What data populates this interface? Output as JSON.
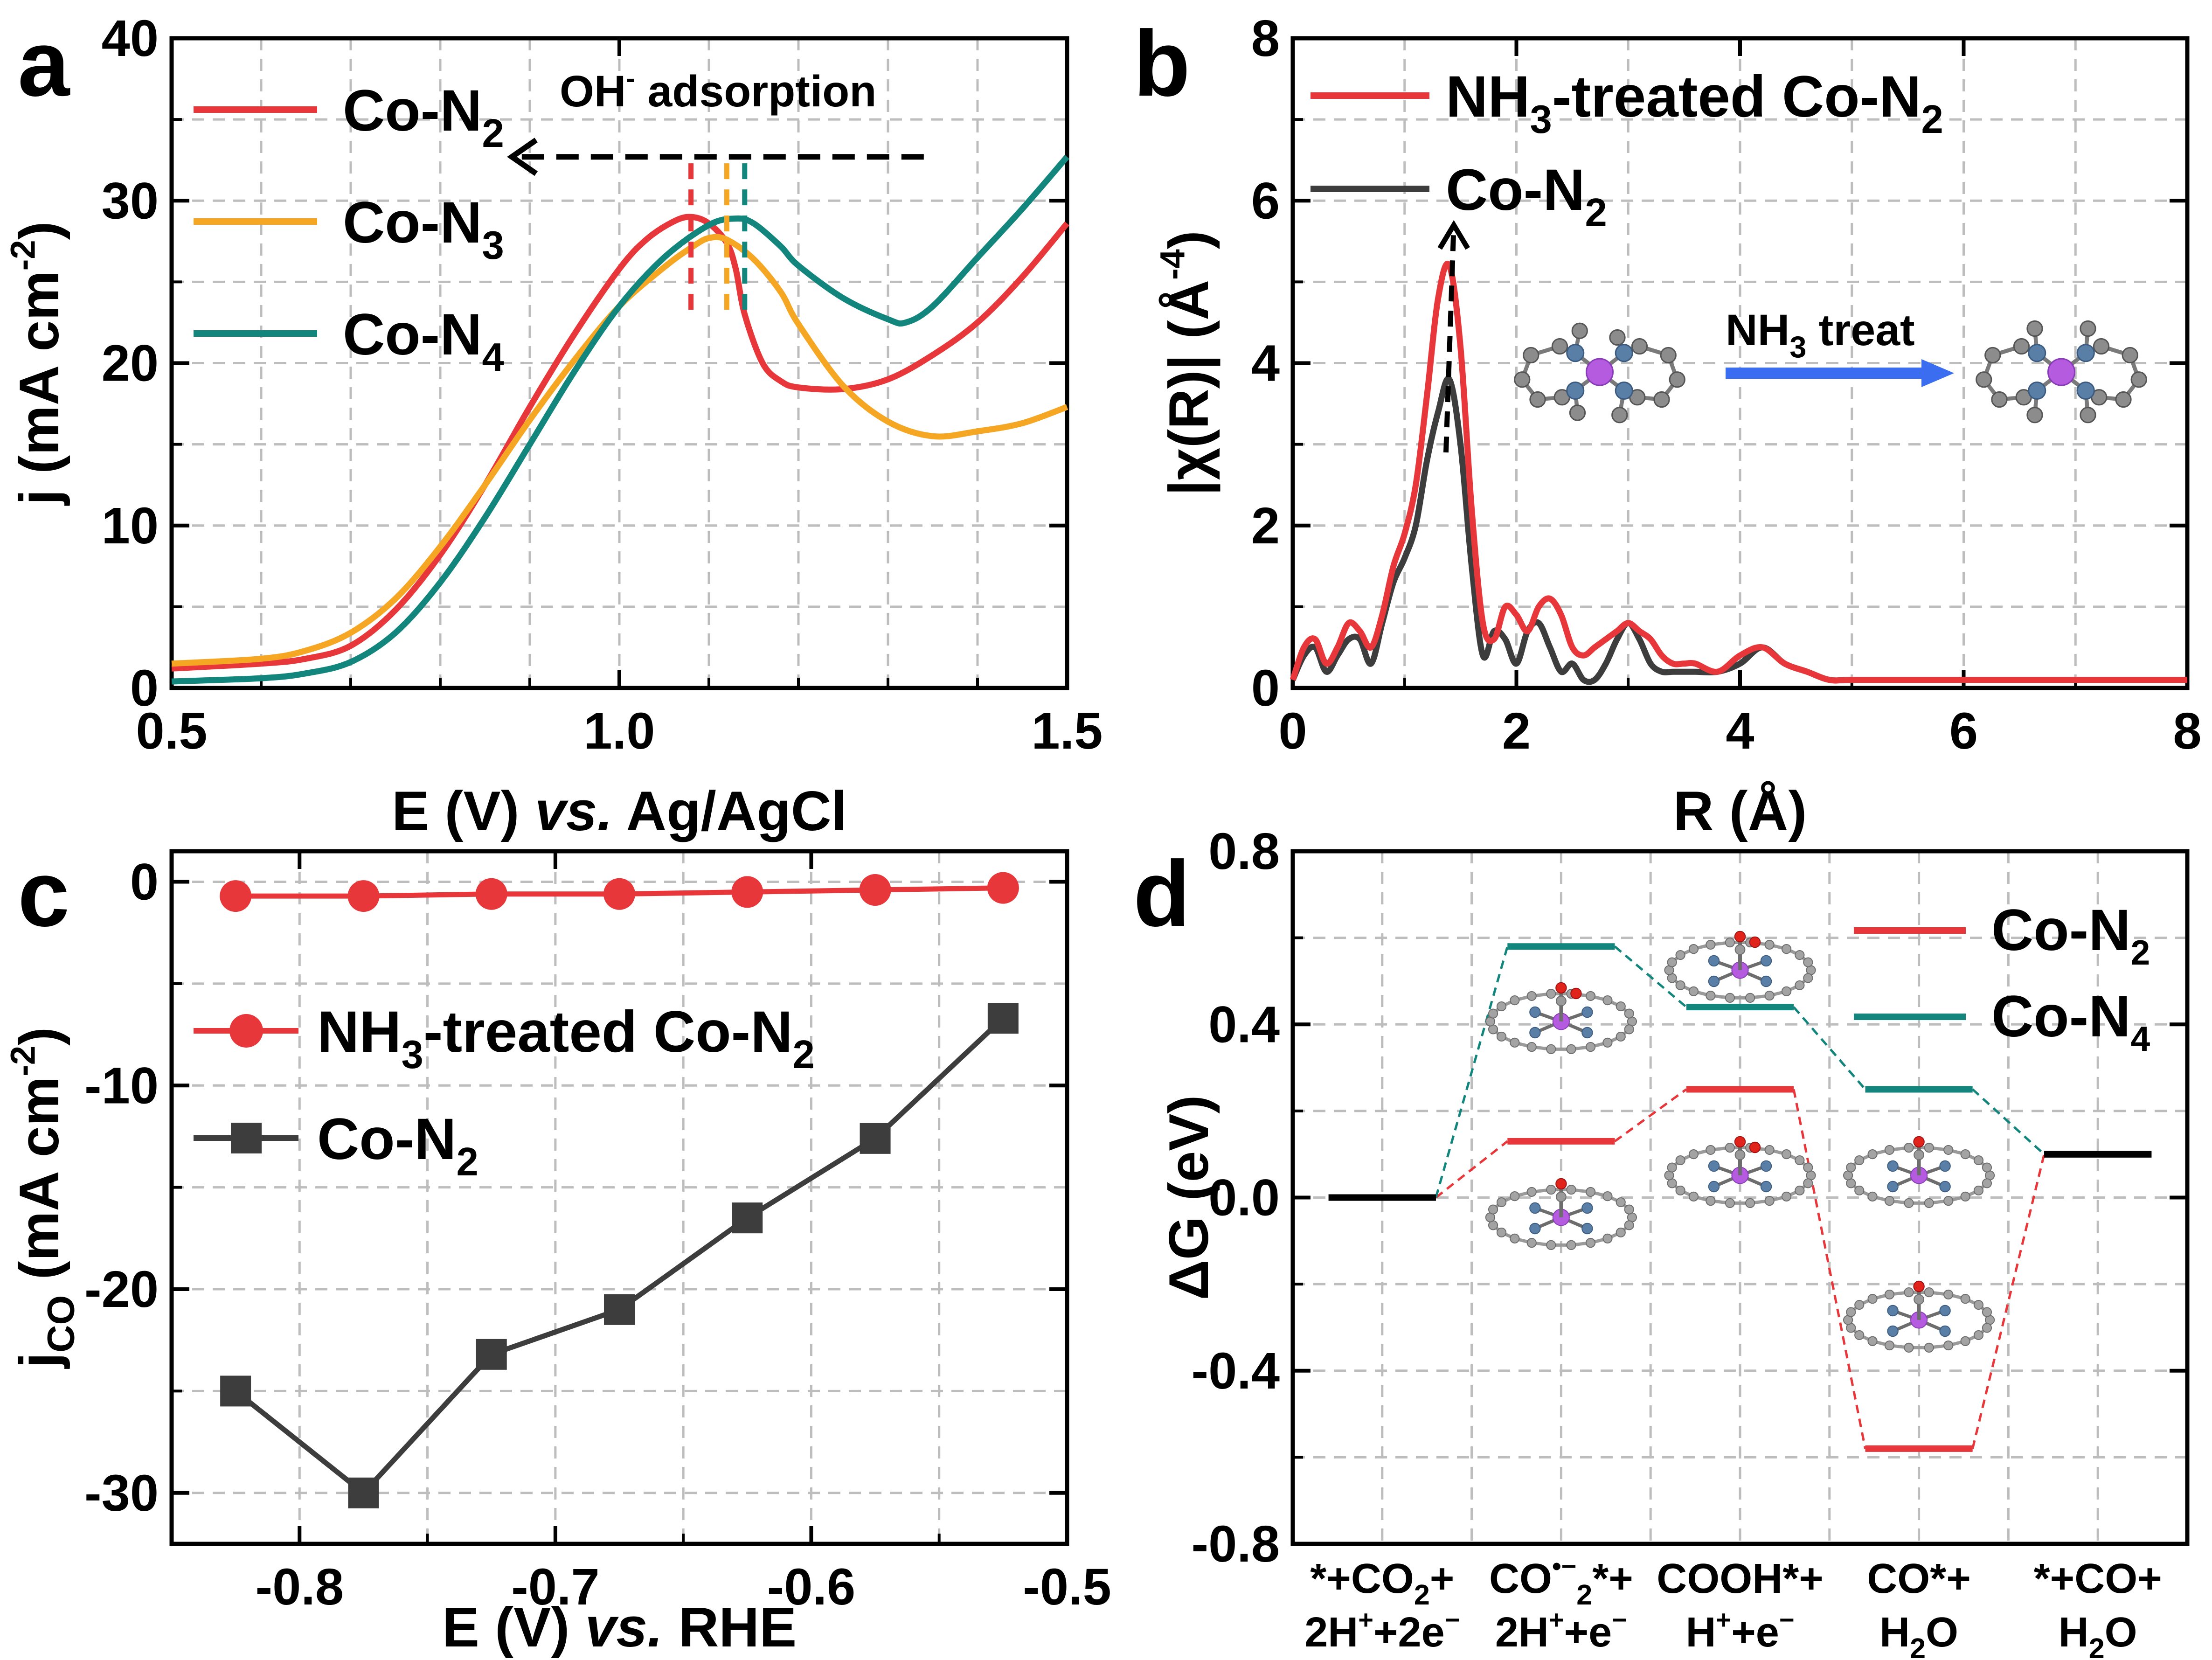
{
  "colors": {
    "red": "#e8373a",
    "orange": "#f5a623",
    "teal": "#12857d",
    "gray": "#3d3d3d",
    "blue": "#3a6df0",
    "black": "#000000"
  },
  "chart_data": [
    {
      "panel": "a",
      "type": "line",
      "xlabel_parts": [
        "E (V) ",
        "vs.",
        " Ag/AgCl"
      ],
      "ylabel": "j (mA cm-2)",
      "ylabel_parts": [
        "j (mA cm",
        "-2",
        ")"
      ],
      "xlim": [
        0.5,
        1.5
      ],
      "ylim": [
        0,
        40
      ],
      "xticks": [
        0.5,
        1.0,
        1.5
      ],
      "xtick_labels": [
        "0.5",
        "1.0",
        "1.5"
      ],
      "yticks": [
        0,
        10,
        20,
        30,
        40
      ],
      "ytick_labels": [
        "0",
        "10",
        "20",
        "30",
        "40"
      ],
      "grid": true,
      "legend_position": "top-left",
      "annotation": "OH- adsorption",
      "annotation_parts": [
        "OH",
        "-",
        " adsorption"
      ],
      "peak_markers": [
        1.08,
        1.12,
        1.14
      ],
      "series": [
        {
          "name": "Co-N2",
          "name_parts": [
            "Co-N",
            "2"
          ],
          "color": "red",
          "x": [
            0.5,
            0.6,
            0.65,
            0.7,
            0.75,
            0.8,
            0.85,
            0.9,
            0.95,
            1.0,
            1.03,
            1.06,
            1.08,
            1.1,
            1.12,
            1.13,
            1.14,
            1.16,
            1.18,
            1.2,
            1.25,
            1.3,
            1.35,
            1.4,
            1.45,
            1.5
          ],
          "y": [
            1.2,
            1.5,
            1.8,
            2.6,
            4.8,
            8.2,
            12.5,
            17.3,
            21.8,
            25.8,
            27.6,
            28.7,
            29.0,
            28.6,
            27.4,
            25.8,
            23.0,
            20.0,
            18.9,
            18.5,
            18.4,
            19.0,
            20.5,
            22.5,
            25.3,
            28.6
          ]
        },
        {
          "name": "Co-N3",
          "name_parts": [
            "Co-N",
            "3"
          ],
          "color": "orange",
          "x": [
            0.5,
            0.6,
            0.65,
            0.7,
            0.75,
            0.8,
            0.85,
            0.9,
            0.95,
            1.0,
            1.05,
            1.08,
            1.1,
            1.12,
            1.15,
            1.18,
            1.2,
            1.25,
            1.3,
            1.35,
            1.4,
            1.45,
            1.5
          ],
          "y": [
            1.5,
            1.8,
            2.3,
            3.4,
            5.5,
            8.7,
            12.5,
            16.5,
            20.2,
            23.5,
            25.9,
            27.1,
            27.7,
            27.6,
            26.4,
            24.4,
            22.4,
            18.6,
            16.4,
            15.5,
            15.8,
            16.3,
            17.3
          ]
        },
        {
          "name": "Co-N4",
          "name_parts": [
            "Co-N",
            "4"
          ],
          "color": "teal",
          "x": [
            0.5,
            0.6,
            0.65,
            0.7,
            0.75,
            0.8,
            0.85,
            0.9,
            0.95,
            1.0,
            1.05,
            1.1,
            1.13,
            1.15,
            1.18,
            1.2,
            1.25,
            1.3,
            1.32,
            1.35,
            1.4,
            1.45,
            1.5
          ],
          "y": [
            0.4,
            0.6,
            0.9,
            1.6,
            3.4,
            6.5,
            10.5,
            15.0,
            19.5,
            23.5,
            26.5,
            28.5,
            28.9,
            28.6,
            27.2,
            26.0,
            24.0,
            22.7,
            22.5,
            23.5,
            26.5,
            29.5,
            32.7
          ]
        }
      ]
    },
    {
      "panel": "b",
      "type": "line",
      "xlabel": "R (Å)",
      "ylabel_parts": [
        "|",
        "χ",
        "(R)| (Å",
        "-4",
        ")"
      ],
      "xlim": [
        0,
        8
      ],
      "ylim": [
        0,
        8
      ],
      "xticks": [
        0,
        2,
        4,
        6,
        8
      ],
      "xtick_labels": [
        "0",
        "2",
        "4",
        "6",
        "8"
      ],
      "yticks": [
        0,
        2,
        4,
        6,
        8
      ],
      "ytick_labels": [
        "0",
        "2",
        "4",
        "6",
        "8"
      ],
      "grid": true,
      "legend_position": "top-left",
      "inset_label_parts": [
        "NH",
        "3",
        " treat"
      ],
      "series": [
        {
          "name_parts": [
            "NH",
            "3",
            "-treated Co-N",
            "2"
          ],
          "color": "red",
          "x": [
            0,
            0.1,
            0.2,
            0.3,
            0.4,
            0.5,
            0.6,
            0.7,
            0.8,
            0.9,
            1.0,
            1.1,
            1.2,
            1.3,
            1.4,
            1.5,
            1.6,
            1.7,
            1.8,
            1.9,
            2.0,
            2.1,
            2.2,
            2.3,
            2.4,
            2.5,
            2.6,
            2.7,
            2.8,
            2.9,
            3.0,
            3.1,
            3.2,
            3.3,
            3.4,
            3.5,
            3.6,
            3.8,
            4.0,
            4.2,
            4.4,
            4.6,
            4.8,
            5.0,
            5.5,
            6.0,
            6.5,
            7.0,
            7.5,
            8.0
          ],
          "y": [
            0.1,
            0.5,
            0.6,
            0.3,
            0.5,
            0.8,
            0.7,
            0.5,
            0.9,
            1.5,
            1.9,
            2.5,
            3.6,
            4.8,
            5.2,
            4.2,
            2.2,
            0.8,
            0.6,
            1.0,
            0.9,
            0.7,
            1.0,
            1.1,
            0.9,
            0.5,
            0.4,
            0.5,
            0.6,
            0.7,
            0.8,
            0.7,
            0.6,
            0.4,
            0.3,
            0.3,
            0.3,
            0.2,
            0.4,
            0.5,
            0.3,
            0.2,
            0.1,
            0.1,
            0.1,
            0.1,
            0.1,
            0.1,
            0.1,
            0.1
          ]
        },
        {
          "name_parts": [
            "Co-N",
            "2"
          ],
          "color": "gray",
          "x": [
            0,
            0.1,
            0.2,
            0.3,
            0.4,
            0.5,
            0.6,
            0.7,
            0.8,
            0.9,
            1.0,
            1.1,
            1.2,
            1.3,
            1.4,
            1.5,
            1.6,
            1.7,
            1.8,
            1.9,
            2.0,
            2.1,
            2.2,
            2.3,
            2.4,
            2.5,
            2.6,
            2.7,
            2.8,
            2.9,
            3.0,
            3.1,
            3.2,
            3.3,
            3.4,
            3.5,
            3.6,
            3.8,
            4.0,
            4.2,
            4.4,
            4.6,
            4.8,
            5.0,
            5.5,
            6.0,
            6.5,
            7.0,
            7.5,
            8.0
          ],
          "y": [
            0.1,
            0.4,
            0.5,
            0.2,
            0.4,
            0.6,
            0.6,
            0.3,
            0.8,
            1.3,
            1.6,
            2.0,
            2.8,
            3.4,
            3.8,
            3.0,
            1.5,
            0.4,
            0.7,
            0.6,
            0.3,
            0.7,
            0.8,
            0.5,
            0.2,
            0.3,
            0.1,
            0.1,
            0.3,
            0.6,
            0.8,
            0.6,
            0.3,
            0.2,
            0.2,
            0.2,
            0.2,
            0.2,
            0.3,
            0.5,
            0.3,
            0.2,
            0.1,
            0.1,
            0.1,
            0.1,
            0.1,
            0.1,
            0.1,
            0.1
          ]
        }
      ]
    },
    {
      "panel": "c",
      "type": "line",
      "xlabel_parts": [
        "E (V) ",
        "vs.",
        " RHE"
      ],
      "ylabel_parts": [
        "j",
        "CO",
        " (mA cm",
        "-2",
        ")"
      ],
      "xlim": [
        -0.85,
        -0.5
      ],
      "ylim": [
        -32.5,
        1.5
      ],
      "xticks": [
        -0.8,
        -0.7,
        -0.6,
        -0.5
      ],
      "xtick_labels": [
        "-0.8",
        "-0.7",
        "-0.6",
        "-0.5"
      ],
      "yticks": [
        -30,
        -20,
        -10,
        0
      ],
      "ytick_labels": [
        "-30",
        "-20",
        "-10",
        "0"
      ],
      "grid": true,
      "legend_position": "center-left",
      "series": [
        {
          "name_parts": [
            "NH",
            "3",
            "-treated Co-N",
            "2"
          ],
          "color": "red",
          "marker": "circle",
          "x": [
            -0.825,
            -0.775,
            -0.725,
            -0.675,
            -0.625,
            -0.575,
            -0.525
          ],
          "y": [
            -0.7,
            -0.7,
            -0.6,
            -0.6,
            -0.5,
            -0.4,
            -0.3
          ]
        },
        {
          "name_parts": [
            "Co-N",
            "2"
          ],
          "color": "gray",
          "marker": "square",
          "x": [
            -0.825,
            -0.775,
            -0.725,
            -0.675,
            -0.625,
            -0.575,
            -0.525
          ],
          "y": [
            -25.0,
            -30.0,
            -23.2,
            -21.0,
            -16.5,
            -12.6,
            -6.7
          ]
        }
      ]
    },
    {
      "panel": "d",
      "type": "line",
      "ylabel": "ΔG (eV)",
      "ylim": [
        -0.8,
        0.8
      ],
      "yticks": [
        -0.8,
        -0.4,
        0.0,
        0.4,
        0.8
      ],
      "ytick_labels": [
        "-0.8",
        "-0.4",
        "0.0",
        "0.4",
        "0.8"
      ],
      "grid": true,
      "legend_position": "top-right",
      "categories": [
        {
          "line1_parts": [
            "*+CO",
            "2",
            "+"
          ],
          "line2_parts": [
            "2H",
            "+",
            "+2e",
            "−"
          ]
        },
        {
          "line1_parts": [
            "CO",
            "•−",
            "2",
            "*+"
          ],
          "line2_parts": [
            "2H",
            "+",
            "+e",
            "−"
          ]
        },
        {
          "line1_parts": [
            "COOH*+"
          ],
          "line2_parts": [
            "H",
            "+",
            "+e",
            "−"
          ]
        },
        {
          "line1_parts": [
            "CO*+"
          ],
          "line2_parts": [
            "H",
            "2",
            "O"
          ]
        },
        {
          "line1_parts": [
            "*+CO+"
          ],
          "line2_parts": [
            "H",
            "2",
            "O"
          ]
        }
      ],
      "series": [
        {
          "name_parts": [
            "Co-N",
            "2"
          ],
          "color": "red",
          "values": [
            0.0,
            0.13,
            0.25,
            -0.58,
            0.1
          ]
        },
        {
          "name_parts": [
            "Co-N",
            "4"
          ],
          "color": "teal",
          "values": [
            0.0,
            0.58,
            0.44,
            0.25,
            0.1
          ]
        }
      ]
    }
  ]
}
